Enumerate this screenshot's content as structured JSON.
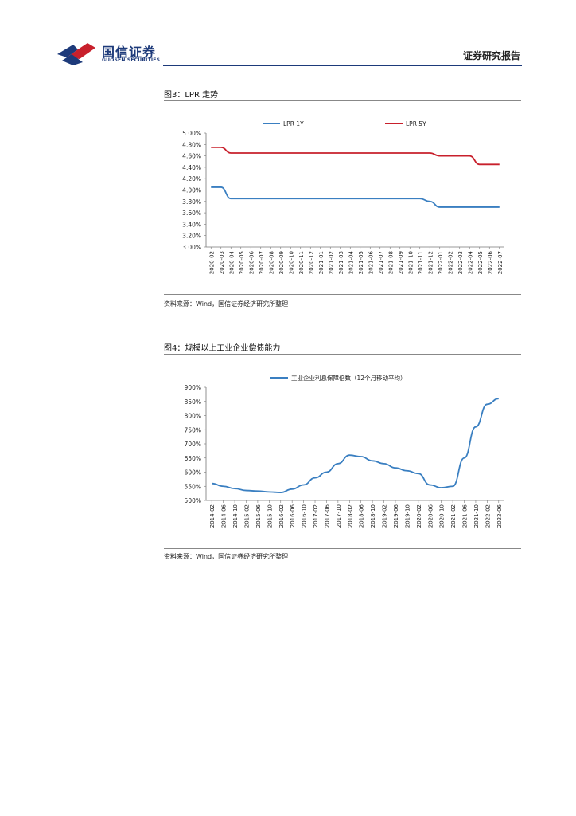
{
  "header": {
    "brand_cn": "国信证券",
    "brand_en": "GUOSEN SECURITIES",
    "report_type": "证券研究报告",
    "logo_icon": "guosen-logo-icon",
    "colors": {
      "navy": "#1d3a7a",
      "red": "#c8202c"
    }
  },
  "figures": [
    {
      "title": "图3：LPR 走势",
      "source": "资料来源：Wind，国信证券经济研究所整理"
    },
    {
      "title": "图4：规模以上工业企业偿债能力",
      "source": "资料来源：Wind，国信证券经济研究所整理"
    }
  ],
  "chart_data": [
    {
      "type": "line",
      "title": "",
      "y_tick_labels": [
        "5.00%",
        "4.80%",
        "4.60%",
        "4.40%",
        "4.20%",
        "4.00%",
        "3.80%",
        "3.60%",
        "3.40%",
        "3.20%",
        "3.00%"
      ],
      "ylim": [
        3.0,
        5.0
      ],
      "x_tick_labels": [
        "2020-02",
        "2020-03",
        "2020-04",
        "2020-05",
        "2020-06",
        "2020-07",
        "2020-08",
        "2020-09",
        "2020-10",
        "2020-11",
        "2020-12",
        "2021-01",
        "2021-02",
        "2021-03",
        "2021-04",
        "2021-05",
        "2021-06",
        "2021-07",
        "2021-08",
        "2021-09",
        "2021-10",
        "2021-11",
        "2021-12",
        "2022-01",
        "2022-02",
        "2022-03",
        "2022-04",
        "2022-05",
        "2022-06",
        "2022-07"
      ],
      "legend_position": "top",
      "series": [
        {
          "name": "LPR 1Y",
          "color": "#3a7fc1",
          "values": [
            4.05,
            4.05,
            3.85,
            3.85,
            3.85,
            3.85,
            3.85,
            3.85,
            3.85,
            3.85,
            3.85,
            3.85,
            3.85,
            3.85,
            3.85,
            3.85,
            3.85,
            3.85,
            3.85,
            3.85,
            3.85,
            3.85,
            3.8,
            3.7,
            3.7,
            3.7,
            3.7,
            3.7,
            3.7,
            3.7
          ]
        },
        {
          "name": "LPR 5Y",
          "color": "#c8202c",
          "values": [
            4.75,
            4.75,
            4.65,
            4.65,
            4.65,
            4.65,
            4.65,
            4.65,
            4.65,
            4.65,
            4.65,
            4.65,
            4.65,
            4.65,
            4.65,
            4.65,
            4.65,
            4.65,
            4.65,
            4.65,
            4.65,
            4.65,
            4.65,
            4.6,
            4.6,
            4.6,
            4.6,
            4.45,
            4.45,
            4.45
          ]
        }
      ]
    },
    {
      "type": "line",
      "title": "",
      "y_tick_labels": [
        "900%",
        "850%",
        "800%",
        "750%",
        "700%",
        "650%",
        "600%",
        "550%",
        "500%"
      ],
      "ylim": [
        500,
        900
      ],
      "x_tick_labels": [
        "2014-02",
        "2014-06",
        "2014-10",
        "2015-02",
        "2015-06",
        "2015-10",
        "2016-02",
        "2016-06",
        "2016-10",
        "2017-02",
        "2017-06",
        "2017-10",
        "2018-02",
        "2018-06",
        "2018-10",
        "2019-02",
        "2019-06",
        "2019-10",
        "2020-02",
        "2020-06",
        "2020-10",
        "2021-02",
        "2021-06",
        "2021-10",
        "2022-02",
        "2022-06"
      ],
      "legend_position": "top",
      "series": [
        {
          "name": "工业企业利息保障倍数（12个月移动平均）",
          "color": "#3a7fc1",
          "values": [
            560,
            550,
            542,
            535,
            533,
            530,
            528,
            540,
            555,
            580,
            600,
            630,
            660,
            655,
            640,
            630,
            615,
            605,
            595,
            555,
            545,
            550,
            650,
            760,
            840,
            860
          ]
        }
      ]
    }
  ]
}
